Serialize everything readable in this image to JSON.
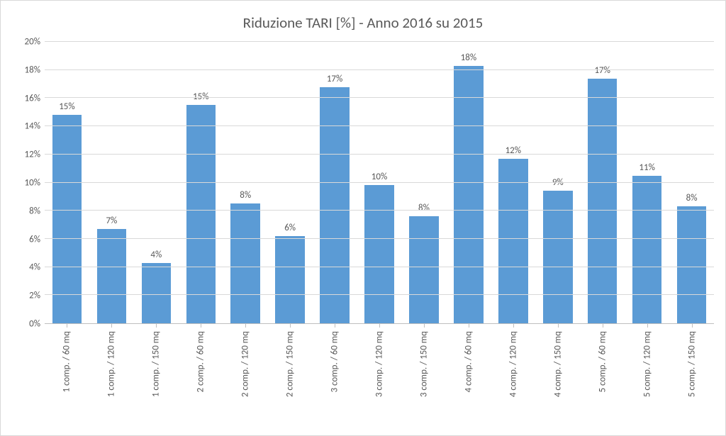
{
  "chart": {
    "type": "bar",
    "title": "Riduzione TARI [%] - Anno 2016 su 2015",
    "title_fontsize": 21,
    "title_color": "#595959",
    "background_color": "#ffffff",
    "border_color": "#d9d9d9",
    "grid_color": "#d9d9d9",
    "axis_line_color": "#bfbfbf",
    "label_color": "#595959",
    "label_fontsize": 13,
    "bar_color": "#5b9bd5",
    "bar_width_ratio": 0.66,
    "ylim": [
      0,
      20
    ],
    "ytick_step": 2,
    "y_tick_format_suffix": "%",
    "categories": [
      "1 comp. / 60 mq",
      "1 comp. / 120 mq",
      "1 comp. / 150 mq",
      "2 comp. / 60 mq",
      "2 comp. / 120 mq",
      "2 comp. / 150 mq",
      "3 comp. / 60 mq",
      "3 comp. / 120 mq",
      "3 comp. / 150 mq",
      "4 comp. / 60 mq",
      "4 comp. / 120 mq",
      "4 comp. / 150 mq",
      "5 comp. / 60 mq",
      "5 comp. / 120 mq",
      "5 comp. / 150 mq"
    ],
    "values": [
      14.8,
      6.7,
      4.3,
      15.5,
      8.5,
      6.2,
      16.8,
      9.8,
      7.6,
      18.3,
      11.7,
      9.4,
      17.4,
      10.5,
      8.3
    ],
    "value_labels": [
      "15%",
      "7%",
      "4%",
      "15%",
      "8%",
      "6%",
      "17%",
      "10%",
      "8%",
      "18%",
      "12%",
      "9%",
      "17%",
      "11%",
      "8%"
    ]
  }
}
